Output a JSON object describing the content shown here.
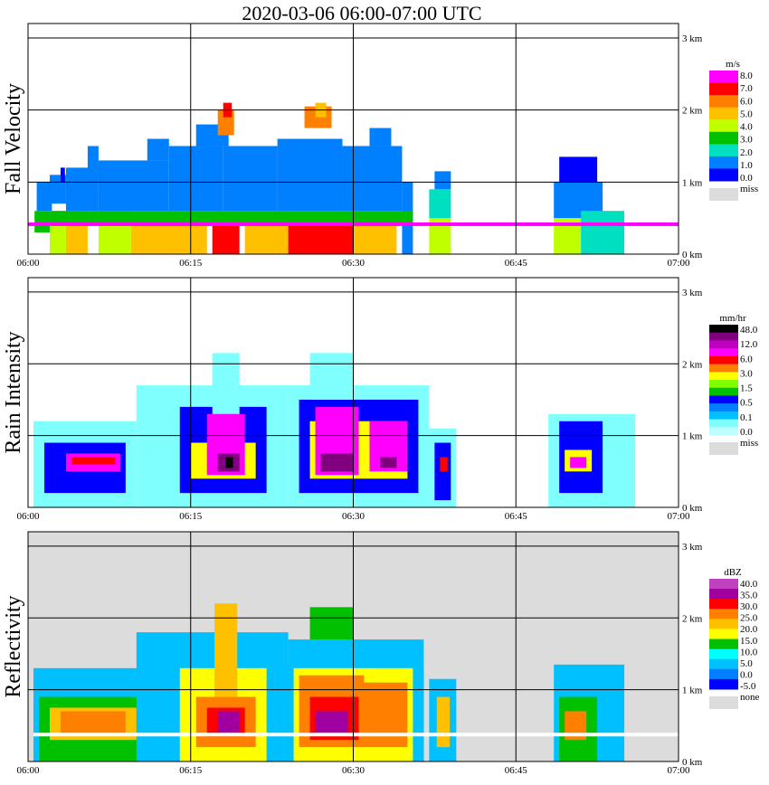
{
  "title": "2020-03-06   06:00-07:00 UTC",
  "colors": {
    "frame": "#000000",
    "grid": "#000000",
    "missing_bg": "#dcdcdc"
  },
  "chart_data": [
    {
      "type": "heatmap",
      "panel": "fall_velocity",
      "ylabel": "Fall Velocity",
      "xlim": [
        "06:00",
        "07:00"
      ],
      "ylim_km": [
        0,
        3.2
      ],
      "x_ticks": [
        "06:00",
        "06:15",
        "06:30",
        "06:45",
        "07:00"
      ],
      "y_ticks": [
        "0 km",
        "1 km",
        "2 km",
        "3 km"
      ],
      "grid": true,
      "background": "white",
      "colorbar": {
        "unit": "m/s",
        "labels": [
          "8.0",
          "7.0",
          "6.0",
          "5.0",
          "4.0",
          "3.0",
          "2.0",
          "1.0",
          "0.0"
        ],
        "colors": [
          "#ff00ff",
          "#ff0000",
          "#ff8000",
          "#ffc000",
          "#c0ff00",
          "#00c000",
          "#00e0c0",
          "#0080ff",
          "#0000ff"
        ],
        "missing_label": "miss",
        "missing_color": "#dcdcdc"
      },
      "cells": [
        {
          "x0": 0.6,
          "x1": 2.0,
          "h0": 0.3,
          "h1": 0.6,
          "v": "#00c000"
        },
        {
          "x0": 0.8,
          "x1": 2.2,
          "h0": 0.6,
          "h1": 1.0,
          "v": "#0080ff"
        },
        {
          "x0": 2.0,
          "x1": 3.6,
          "h0": 0.0,
          "h1": 0.6,
          "v": "#c0ff00"
        },
        {
          "x0": 2.0,
          "x1": 3.5,
          "h0": 0.7,
          "h1": 1.1,
          "v": "#0080ff"
        },
        {
          "x0": 3.0,
          "x1": 3.4,
          "h0": 1.0,
          "h1": 1.2,
          "v": "#0000ff"
        },
        {
          "x0": 3.5,
          "x1": 5.5,
          "h0": 0.0,
          "h1": 0.6,
          "v": "#ffc000"
        },
        {
          "x0": 3.5,
          "x1": 6.5,
          "h0": 0.6,
          "h1": 1.2,
          "v": "#0080ff"
        },
        {
          "x0": 5.5,
          "x1": 6.5,
          "h0": 1.0,
          "h1": 1.5,
          "v": "#0080ff"
        },
        {
          "x0": 6.5,
          "x1": 9.5,
          "h0": 0.0,
          "h1": 0.6,
          "v": "#c0ff00"
        },
        {
          "x0": 6.5,
          "x1": 13.0,
          "h0": 0.6,
          "h1": 1.3,
          "v": "#0080ff"
        },
        {
          "x0": 11.0,
          "x1": 13.0,
          "h0": 1.3,
          "h1": 1.6,
          "v": "#0080ff"
        },
        {
          "x0": 13.0,
          "x1": 18.0,
          "h0": 0.6,
          "h1": 1.5,
          "v": "#0080ff"
        },
        {
          "x0": 15.5,
          "x1": 18.5,
          "h0": 1.5,
          "h1": 1.8,
          "v": "#0080ff"
        },
        {
          "x0": 17.0,
          "x1": 19.5,
          "h0": 0.0,
          "h1": 0.4,
          "v": "#ff0000"
        },
        {
          "x0": 9.5,
          "x1": 16.5,
          "h0": 0.0,
          "h1": 0.4,
          "v": "#ffc000"
        },
        {
          "x0": 17.5,
          "x1": 19.0,
          "h0": 1.65,
          "h1": 2.0,
          "v": "#ff8000"
        },
        {
          "x0": 18.0,
          "x1": 18.8,
          "h0": 1.9,
          "h1": 2.1,
          "v": "#ff0000"
        },
        {
          "x0": 18.0,
          "x1": 23.0,
          "h0": 0.6,
          "h1": 1.5,
          "v": "#0080ff"
        },
        {
          "x0": 20.0,
          "x1": 24.0,
          "h0": 0.0,
          "h1": 0.4,
          "v": "#ffc000"
        },
        {
          "x0": 23.0,
          "x1": 29.0,
          "h0": 0.6,
          "h1": 1.6,
          "v": "#0080ff"
        },
        {
          "x0": 24.0,
          "x1": 30.0,
          "h0": 0.0,
          "h1": 0.4,
          "v": "#ff0000"
        },
        {
          "x0": 25.5,
          "x1": 28.0,
          "h0": 1.75,
          "h1": 2.05,
          "v": "#ff8000"
        },
        {
          "x0": 26.5,
          "x1": 27.5,
          "h0": 1.9,
          "h1": 2.1,
          "v": "#ffc000"
        },
        {
          "x0": 29.0,
          "x1": 34.5,
          "h0": 0.6,
          "h1": 1.5,
          "v": "#0080ff"
        },
        {
          "x0": 31.5,
          "x1": 33.5,
          "h0": 1.5,
          "h1": 1.75,
          "v": "#0080ff"
        },
        {
          "x0": 30.0,
          "x1": 34.0,
          "h0": 0.0,
          "h1": 0.4,
          "v": "#ffc000"
        },
        {
          "x0": 34.5,
          "x1": 35.5,
          "h0": 0.0,
          "h1": 1.0,
          "v": "#0080ff"
        },
        {
          "x0": 2.0,
          "x1": 35.5,
          "h0": 0.4,
          "h1": 0.6,
          "v": "#00c000"
        },
        {
          "x0": 37.0,
          "x1": 39.0,
          "h0": 0.0,
          "h1": 0.5,
          "v": "#c0ff00"
        },
        {
          "x0": 37.0,
          "x1": 39.0,
          "h0": 0.5,
          "h1": 0.9,
          "v": "#00e0c0"
        },
        {
          "x0": 37.5,
          "x1": 39.0,
          "h0": 0.9,
          "h1": 1.15,
          "v": "#0080ff"
        },
        {
          "x0": 48.5,
          "x1": 51.0,
          "h0": 0.0,
          "h1": 0.5,
          "v": "#c0ff00"
        },
        {
          "x0": 48.5,
          "x1": 53.0,
          "h0": 0.5,
          "h1": 1.0,
          "v": "#0080ff"
        },
        {
          "x0": 49.0,
          "x1": 52.5,
          "h0": 1.0,
          "h1": 1.35,
          "v": "#0000ff"
        },
        {
          "x0": 51.0,
          "x1": 55.0,
          "h0": 0.0,
          "h1": 0.6,
          "v": "#00e0c0"
        },
        {
          "x0": 0.0,
          "x1": 60.0,
          "h0": 0.39,
          "h1": 0.44,
          "v": "#ff00ff"
        }
      ]
    },
    {
      "type": "heatmap",
      "panel": "rain_intensity",
      "ylabel": "Rain Intensity",
      "xlim": [
        "06:00",
        "07:00"
      ],
      "ylim_km": [
        0,
        3.2
      ],
      "x_ticks": [
        "06:00",
        "06:15",
        "06:30",
        "06:45",
        "07:00"
      ],
      "y_ticks": [
        "0 km",
        "1 km",
        "2 km",
        "3 km"
      ],
      "grid": true,
      "background": "white",
      "colorbar": {
        "unit": "mm/hr",
        "labels": [
          "48.0",
          "12.0",
          "6.0",
          "3.0",
          "1.5",
          "0.5",
          "0.1",
          "0.0"
        ],
        "colors": [
          "#000000",
          "#800080",
          "#c000c0",
          "#ff00ff",
          "#ff0000",
          "#ff8000",
          "#ffff00",
          "#80ff00",
          "#00c000",
          "#0000ff",
          "#0080ff",
          "#00c0ff",
          "#80ffff",
          "#c0ffff"
        ],
        "missing_label": "miss",
        "missing_color": "#dcdcdc"
      },
      "cells": [
        {
          "x0": 0.5,
          "x1": 10.0,
          "h0": 0.0,
          "h1": 1.2,
          "v": "#80ffff"
        },
        {
          "x0": 1.5,
          "x1": 9.0,
          "h0": 0.2,
          "h1": 0.9,
          "v": "#0000ff"
        },
        {
          "x0": 3.5,
          "x1": 8.5,
          "h0": 0.5,
          "h1": 0.75,
          "v": "#ff00ff"
        },
        {
          "x0": 4.0,
          "x1": 8.0,
          "h0": 0.6,
          "h1": 0.7,
          "v": "#ff0000"
        },
        {
          "x0": 10.0,
          "x1": 24.0,
          "h0": 0.0,
          "h1": 1.7,
          "v": "#80ffff"
        },
        {
          "x0": 14.0,
          "x1": 22.0,
          "h0": 0.2,
          "h1": 1.4,
          "v": "#0000ff"
        },
        {
          "x0": 15.0,
          "x1": 21.0,
          "h0": 0.4,
          "h1": 0.9,
          "v": "#ffff00"
        },
        {
          "x0": 16.5,
          "x1": 20.0,
          "h0": 0.45,
          "h1": 1.3,
          "v": "#ff00ff"
        },
        {
          "x0": 17.5,
          "x1": 19.5,
          "h0": 0.5,
          "h1": 0.75,
          "v": "#800080"
        },
        {
          "x0": 18.2,
          "x1": 18.9,
          "h0": 0.55,
          "h1": 0.7,
          "v": "#000000"
        },
        {
          "x0": 17.0,
          "x1": 19.5,
          "h0": 1.3,
          "h1": 2.15,
          "v": "#80ffff"
        },
        {
          "x0": 24.0,
          "x1": 37.0,
          "h0": 0.0,
          "h1": 1.7,
          "v": "#80ffff"
        },
        {
          "x0": 25.0,
          "x1": 36.0,
          "h0": 0.2,
          "h1": 1.5,
          "v": "#0000ff"
        },
        {
          "x0": 26.0,
          "x1": 35.0,
          "h0": 0.4,
          "h1": 1.2,
          "v": "#ffff00"
        },
        {
          "x0": 26.5,
          "x1": 30.5,
          "h0": 0.45,
          "h1": 1.4,
          "v": "#ff00ff"
        },
        {
          "x0": 27.0,
          "x1": 30.0,
          "h0": 0.5,
          "h1": 0.75,
          "v": "#800080"
        },
        {
          "x0": 31.5,
          "x1": 35.0,
          "h0": 0.5,
          "h1": 1.2,
          "v": "#ff00ff"
        },
        {
          "x0": 32.5,
          "x1": 34.0,
          "h0": 0.55,
          "h1": 0.7,
          "v": "#800080"
        },
        {
          "x0": 26.0,
          "x1": 30.0,
          "h0": 1.5,
          "h1": 2.15,
          "v": "#80ffff"
        },
        {
          "x0": 37.0,
          "x1": 39.5,
          "h0": 0.0,
          "h1": 1.1,
          "v": "#80ffff"
        },
        {
          "x0": 37.5,
          "x1": 39.0,
          "h0": 0.1,
          "h1": 0.9,
          "v": "#0000ff"
        },
        {
          "x0": 38.0,
          "x1": 38.7,
          "h0": 0.5,
          "h1": 0.7,
          "v": "#ff0000"
        },
        {
          "x0": 48.0,
          "x1": 56.0,
          "h0": 0.0,
          "h1": 1.3,
          "v": "#80ffff"
        },
        {
          "x0": 49.0,
          "x1": 53.0,
          "h0": 0.2,
          "h1": 1.2,
          "v": "#0000ff"
        },
        {
          "x0": 49.5,
          "x1": 52.0,
          "h0": 0.5,
          "h1": 0.8,
          "v": "#ffff00"
        },
        {
          "x0": 50.0,
          "x1": 51.5,
          "h0": 0.55,
          "h1": 0.7,
          "v": "#ff00ff"
        }
      ]
    },
    {
      "type": "heatmap",
      "panel": "reflectivity",
      "ylabel": "Reflectivity",
      "xlim": [
        "06:00",
        "07:00"
      ],
      "ylim_km": [
        0,
        3.2
      ],
      "x_ticks": [
        "06:00",
        "06:15",
        "06:30",
        "06:45",
        "07:00"
      ],
      "y_ticks": [
        "0 km",
        "1 km",
        "2 km",
        "3 km"
      ],
      "grid": true,
      "background": "gray",
      "colorbar": {
        "unit": "dBZ",
        "labels": [
          "40.0",
          "35.0",
          "30.0",
          "25.0",
          "20.0",
          "15.0",
          "10.0",
          "5.0",
          "0.0",
          "-5.0"
        ],
        "colors": [
          "#c040c0",
          "#a000a0",
          "#ff0000",
          "#ff8000",
          "#ffc000",
          "#ffff00",
          "#00c000",
          "#00ffff",
          "#00c0ff",
          "#0080ff",
          "#0000ff"
        ],
        "missing_label": "none",
        "missing_color": "#dcdcdc"
      },
      "cells": [
        {
          "x0": 0.5,
          "x1": 36.5,
          "h0": 0.0,
          "h1": 1.3,
          "v": "#00c0ff"
        },
        {
          "x0": 1.0,
          "x1": 36.0,
          "h0": 0.0,
          "h1": 0.9,
          "v": "#00c000"
        },
        {
          "x0": 2.0,
          "x1": 10.0,
          "h0": 0.3,
          "h1": 0.75,
          "v": "#ffc000"
        },
        {
          "x0": 3.0,
          "x1": 9.0,
          "h0": 0.4,
          "h1": 0.7,
          "v": "#ff8000"
        },
        {
          "x0": 10.0,
          "x1": 24.0,
          "h0": 0.0,
          "h1": 1.8,
          "v": "#00c0ff"
        },
        {
          "x0": 14.0,
          "x1": 22.0,
          "h0": 0.0,
          "h1": 1.3,
          "v": "#ffff00"
        },
        {
          "x0": 15.5,
          "x1": 21.0,
          "h0": 0.2,
          "h1": 0.9,
          "v": "#ff8000"
        },
        {
          "x0": 16.5,
          "x1": 20.0,
          "h0": 0.35,
          "h1": 0.75,
          "v": "#ff0000"
        },
        {
          "x0": 17.5,
          "x1": 19.5,
          "h0": 0.4,
          "h1": 0.7,
          "v": "#a000a0"
        },
        {
          "x0": 17.2,
          "x1": 19.3,
          "h0": 0.9,
          "h1": 2.2,
          "v": "#ffc000"
        },
        {
          "x0": 24.0,
          "x1": 36.5,
          "h0": 0.0,
          "h1": 1.7,
          "v": "#00c0ff"
        },
        {
          "x0": 24.5,
          "x1": 35.5,
          "h0": 0.0,
          "h1": 1.3,
          "v": "#ffff00"
        },
        {
          "x0": 25.0,
          "x1": 31.0,
          "h0": 0.2,
          "h1": 1.2,
          "v": "#ff8000"
        },
        {
          "x0": 26.0,
          "x1": 30.5,
          "h0": 0.3,
          "h1": 0.9,
          "v": "#ff0000"
        },
        {
          "x0": 26.5,
          "x1": 29.5,
          "h0": 0.4,
          "h1": 0.7,
          "v": "#a000a0"
        },
        {
          "x0": 31.0,
          "x1": 35.0,
          "h0": 0.2,
          "h1": 1.1,
          "v": "#ff8000"
        },
        {
          "x0": 26.0,
          "x1": 30.0,
          "h0": 1.7,
          "h1": 2.15,
          "v": "#00c000"
        },
        {
          "x0": 37.0,
          "x1": 39.5,
          "h0": 0.0,
          "h1": 1.15,
          "v": "#00c0ff"
        },
        {
          "x0": 37.7,
          "x1": 38.9,
          "h0": 0.2,
          "h1": 0.9,
          "v": "#ffc000"
        },
        {
          "x0": 48.5,
          "x1": 55.0,
          "h0": 0.0,
          "h1": 1.35,
          "v": "#00c0ff"
        },
        {
          "x0": 49.0,
          "x1": 52.5,
          "h0": 0.0,
          "h1": 0.9,
          "v": "#00c000"
        },
        {
          "x0": 49.5,
          "x1": 51.5,
          "h0": 0.3,
          "h1": 0.7,
          "v": "#ff8000"
        },
        {
          "x0": 0.5,
          "x1": 60.0,
          "h0": 0.35,
          "h1": 0.4,
          "v": "#ffffff"
        }
      ]
    }
  ]
}
